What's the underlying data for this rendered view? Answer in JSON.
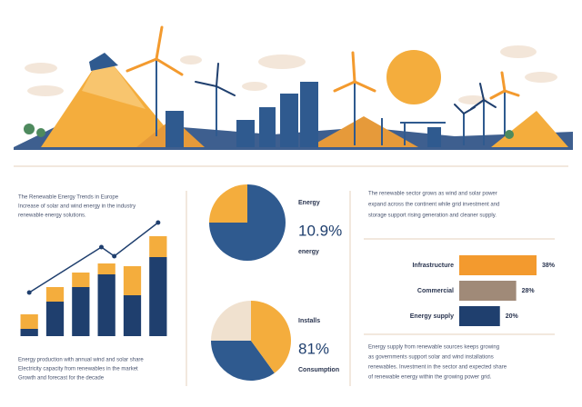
{
  "text": {
    "intro": [
      "The Renewable Energy Trends in Europe",
      "Increase of solar and wind energy in the industry",
      "renewable energy solutions."
    ],
    "intro_right": [
      "The renewable sector grows as wind and solar power",
      "expand across the continent while grid investment and",
      "storage support rising generation and cleaner supply."
    ],
    "chart_note": [
      "Energy production with annual wind and solar share",
      "Electricity capacity from renewables in the market",
      "Growth and forecast for the decade"
    ],
    "footer_right": [
      "Energy supply from renewable sources keeps growing",
      "as governments support solar and wind installations",
      "renewables. Investment in the sector and expected share",
      "of renewable energy within the growing power grid."
    ]
  },
  "chart_data": [
    {
      "type": "stacked_bar",
      "series": [
        {
          "color": "#1f3f6e",
          "values": [
            8,
            38,
            54,
            68,
            45,
            87
          ]
        },
        {
          "color": "#f4ad3d",
          "values": [
            16,
            16,
            16,
            12,
            32,
            23
          ]
        }
      ],
      "ylim": [
        0,
        125
      ]
    },
    {
      "type": "line",
      "color": "#1f3f6e",
      "x": [
        0,
        2.8,
        3.3,
        5
      ],
      "values": [
        48,
        98,
        88,
        125
      ],
      "xlim": [
        0,
        5
      ],
      "ylim": [
        0,
        125
      ]
    },
    {
      "type": "pie",
      "title": "Energy",
      "headline": "10.9%",
      "subtitle": "energy",
      "values": [
        25,
        75
      ],
      "colors": [
        "#f4ad3d",
        "#2f5a8f"
      ]
    },
    {
      "type": "pie",
      "title": "Installs",
      "headline": "81%",
      "subtitle": "Consumption",
      "values": [
        25,
        35,
        40
      ],
      "colors": [
        "#f0e1cf",
        "#2f5a8f",
        "#f4ad3d"
      ]
    },
    {
      "type": "hbar",
      "categories": [
        "Infrastructure",
        "Commercial",
        "Energy supply"
      ],
      "values": [
        38,
        28,
        20
      ],
      "value_labels": [
        "38%",
        "28%",
        "20%"
      ],
      "colors": [
        "#f39a2e",
        "#a08a78",
        "#1f3f6e"
      ],
      "xlim": [
        0,
        38
      ]
    }
  ]
}
